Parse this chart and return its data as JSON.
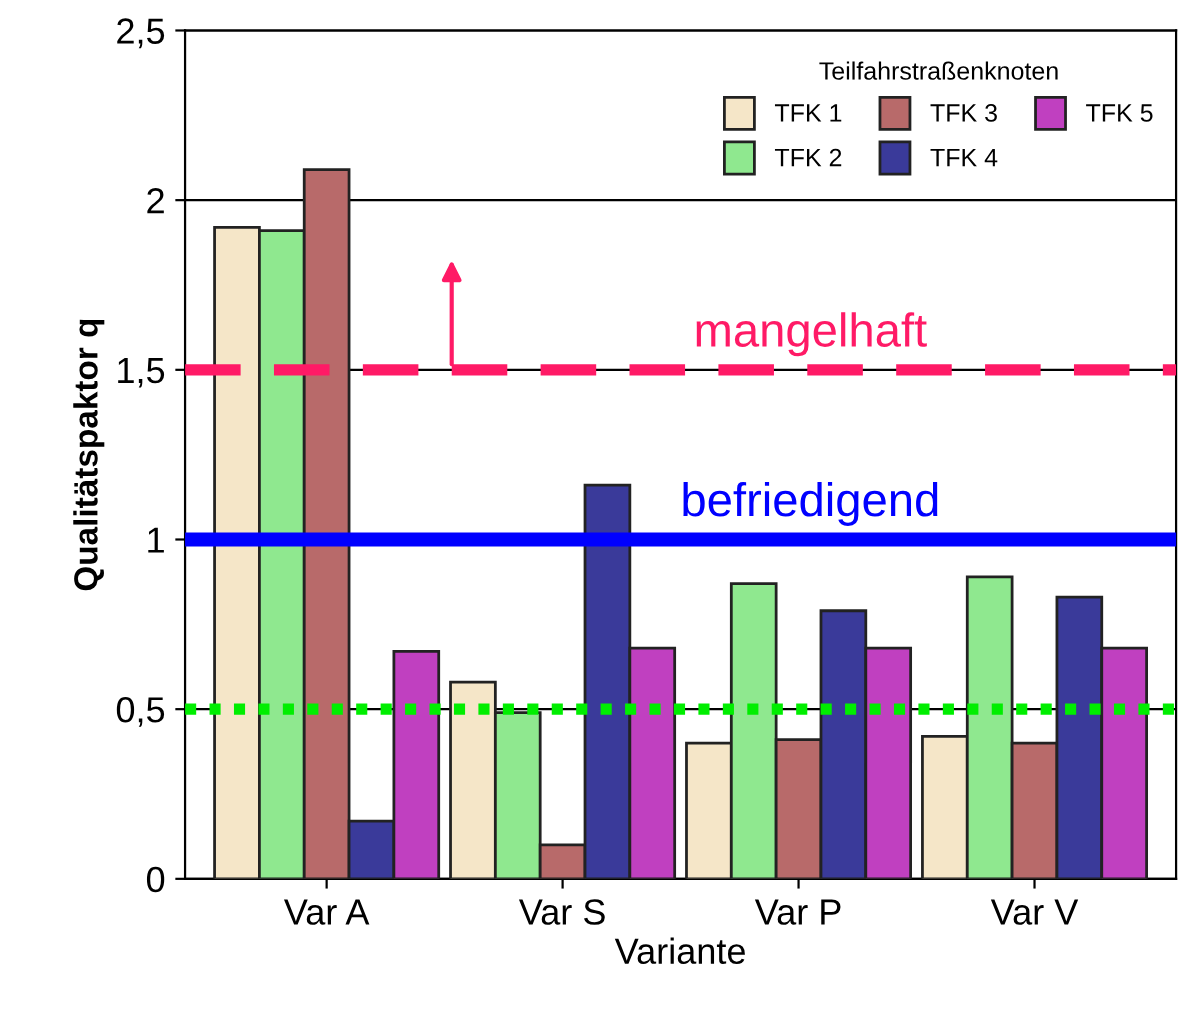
{
  "chart_data": {
    "type": "bar",
    "xlabel": "Variante",
    "ylabel": "Qualitätspaktor q",
    "legend_title": "Teilfahrstraßenknoten",
    "categories": [
      "Var A",
      "Var S",
      "Var P",
      "Var V"
    ],
    "series": [
      {
        "name": "TFK 1",
        "color": "#f5e6c8",
        "values": [
          1.92,
          0.58,
          0.4,
          0.42
        ]
      },
      {
        "name": "TFK 2",
        "color": "#8fe88f",
        "values": [
          1.91,
          0.49,
          0.87,
          0.89
        ]
      },
      {
        "name": "TFK 3",
        "color": "#b86a6a",
        "values": [
          2.09,
          0.1,
          0.41,
          0.4
        ]
      },
      {
        "name": "TFK 4",
        "color": "#3a3a9a",
        "values": [
          0.17,
          1.16,
          0.79,
          0.83
        ]
      },
      {
        "name": "TFK 5",
        "color": "#c040c0",
        "values": [
          0.67,
          0.68,
          0.68,
          0.68
        ]
      }
    ],
    "ylim": [
      0,
      2.5
    ],
    "yticks": [
      {
        "value": 0,
        "label": "0"
      },
      {
        "value": 0.5,
        "label": "0,5"
      },
      {
        "value": 1,
        "label": "1"
      },
      {
        "value": 1.5,
        "label": "1,5"
      },
      {
        "value": 2,
        "label": "2"
      },
      {
        "value": 2.5,
        "label": "2,5"
      }
    ],
    "ref_lines": [
      {
        "axis": "y",
        "value": 1.5,
        "label": "mangelhaft",
        "color": "#ff1a66",
        "line_style": "dashed"
      },
      {
        "axis": "y",
        "value": 1,
        "label": "befriedigend",
        "color": "#0000ff",
        "line_style": "solid"
      },
      {
        "axis": "y",
        "value": 0.5,
        "label": null,
        "color": "#00ee00",
        "line_style": "dotted"
      }
    ],
    "grid": "y",
    "legend": "top right"
  }
}
